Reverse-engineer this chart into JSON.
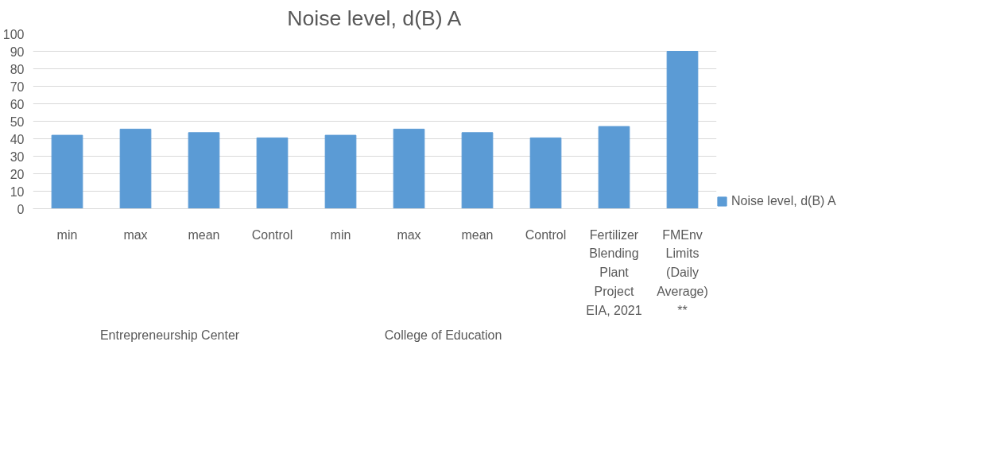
{
  "chart_data": {
    "type": "bar",
    "title": "Noise level, d(B) A",
    "categories": [
      "min",
      "max",
      "mean",
      "Control",
      "min",
      "max",
      "mean",
      "Control",
      "Fertilizer Blending Plant Project EIA, 2021",
      "FMEnv Limits (Daily Average) **"
    ],
    "series": [
      {
        "name": "Noise level, d(B) A",
        "color": "#5b9bd5",
        "values": [
          42,
          45.5,
          43.5,
          40.5,
          42,
          45.5,
          43.5,
          40.5,
          47,
          90
        ]
      }
    ],
    "annotations": [
      "Entrepreneurship Center",
      "College of Education"
    ],
    "ylim": [
      0,
      100
    ],
    "yticks": [
      0,
      10,
      20,
      30,
      40,
      50,
      60,
      70,
      80,
      90,
      100
    ],
    "grid": "y",
    "legend": "right"
  }
}
